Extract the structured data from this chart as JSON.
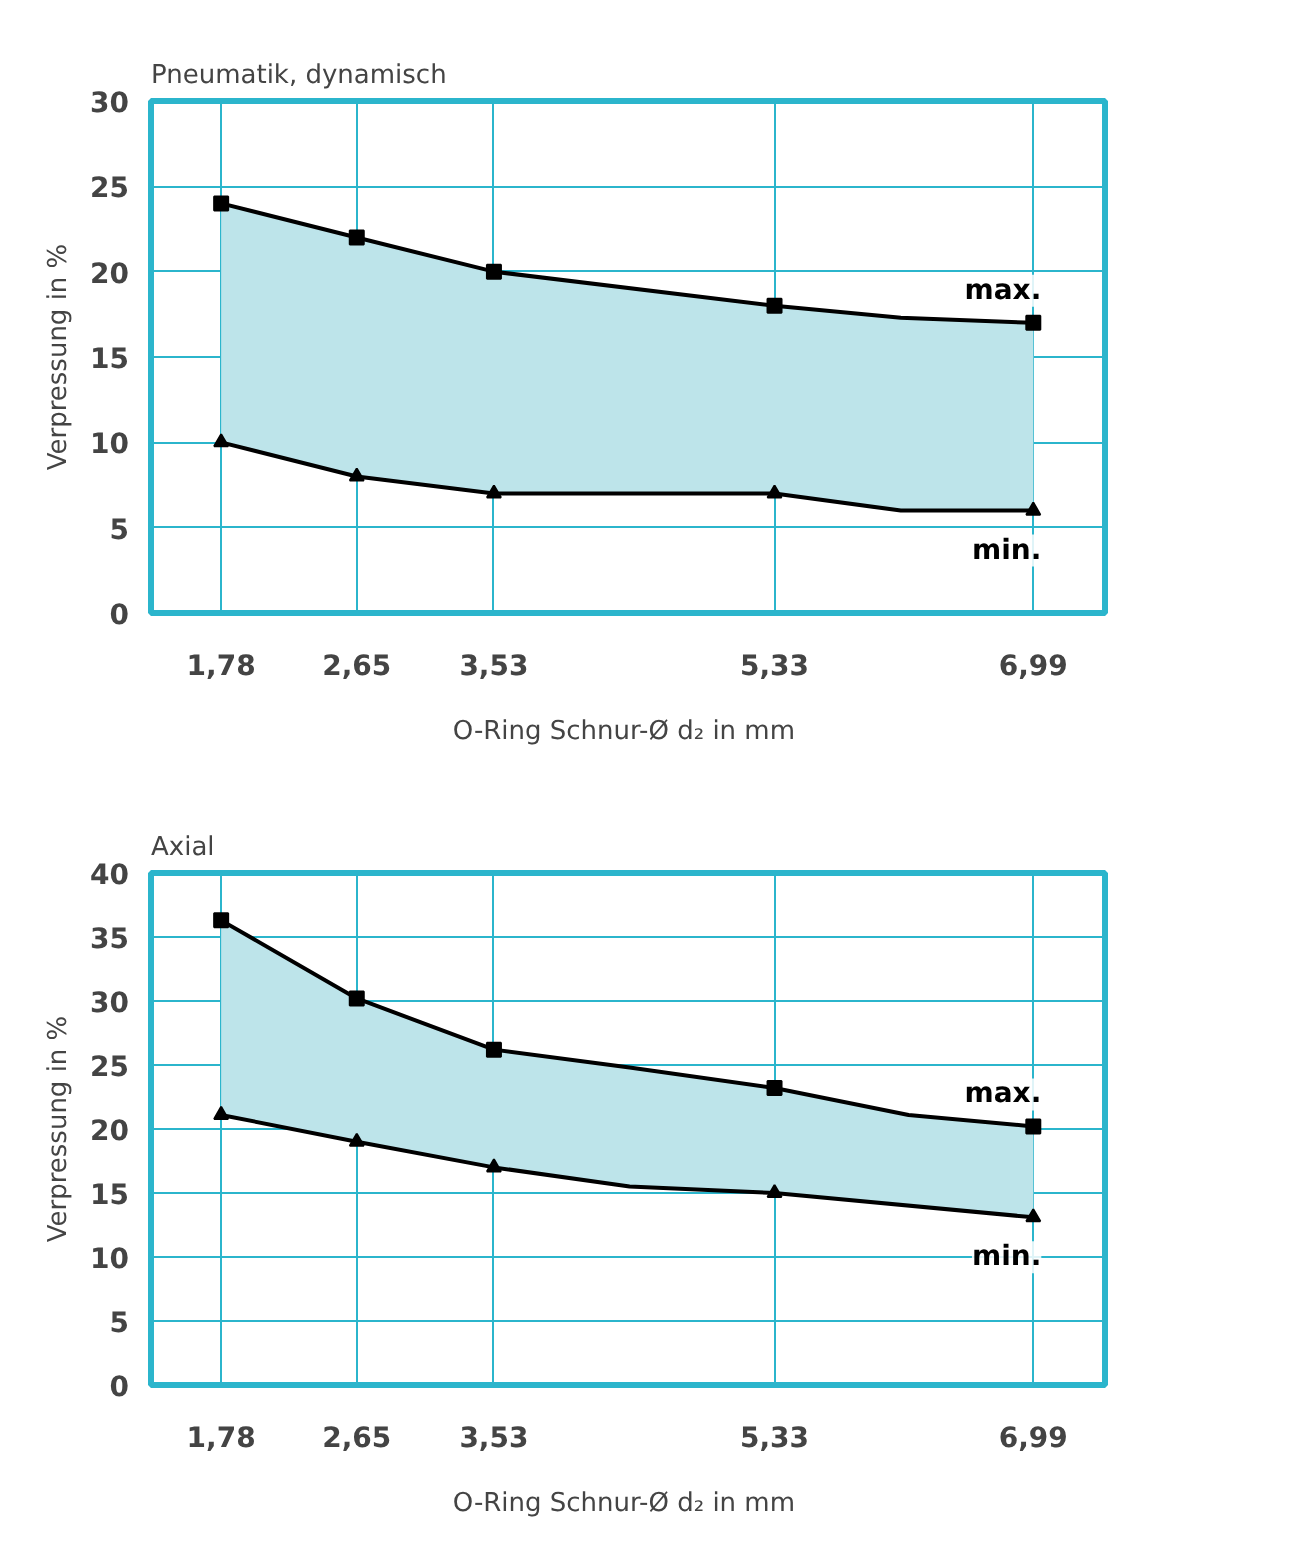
{
  "chart_data": [
    {
      "type": "line",
      "title": "Pneumatik, dynamisch",
      "xlabel": "O-Ring Schnur-Ø  d₂ in mm",
      "ylabel": "Verpressung in %",
      "xlim": [
        1.33,
        7.45
      ],
      "ylim": [
        0,
        30
      ],
      "xticks": [
        {
          "value": 1.78,
          "label": "1,78"
        },
        {
          "value": 2.65,
          "label": "2,65"
        },
        {
          "value": 3.53,
          "label": "3,53"
        },
        {
          "value": 5.33,
          "label": "5,33"
        },
        {
          "value": 6.99,
          "label": "6,99"
        }
      ],
      "yticks": [
        0,
        5,
        10,
        15,
        20,
        25,
        30
      ],
      "grid": true,
      "line_style": "solid",
      "series": [
        {
          "name": "max.",
          "color": "#000000",
          "marker": "square",
          "x": [
            1.78,
            2.65,
            3.53,
            5.33,
            6.14,
            6.99
          ],
          "values": [
            24,
            22,
            20,
            18,
            17.3,
            17
          ],
          "upper": [
            24,
            22,
            20,
            18,
            17.3,
            17
          ],
          "lower": [
            10,
            8,
            7,
            7,
            6,
            6
          ]
        },
        {
          "name": "min.",
          "color": "#000000",
          "marker": "triangle",
          "x": [
            1.78,
            2.65,
            3.53,
            5.33,
            6.14,
            6.99
          ],
          "values": [
            10,
            8,
            7,
            7,
            6,
            6
          ]
        }
      ]
    },
    {
      "type": "line",
      "title": "Axial",
      "xlabel": "O-Ring Schnur-Ø  d₂ in mm",
      "ylabel": "Verpressung in %",
      "xlim": [
        1.33,
        7.45
      ],
      "ylim": [
        0,
        40
      ],
      "xticks": [
        {
          "value": 1.78,
          "label": "1,78"
        },
        {
          "value": 2.65,
          "label": "2,65"
        },
        {
          "value": 3.53,
          "label": "3,53"
        },
        {
          "value": 5.33,
          "label": "5,33"
        },
        {
          "value": 6.99,
          "label": "6,99"
        }
      ],
      "yticks": [
        0,
        5,
        10,
        15,
        20,
        25,
        30,
        35,
        40
      ],
      "grid": true,
      "line_style": "solid",
      "series": [
        {
          "name": "max.",
          "color": "#000000",
          "marker": "square",
          "x": [
            1.78,
            2.65,
            3.53,
            4.4,
            5.33,
            6.19,
            6.99
          ],
          "values": [
            36.3,
            30.2,
            26.2,
            24.8,
            23.2,
            21.1,
            20.2
          ],
          "upper": [
            36.3,
            30.2,
            26.2,
            24.8,
            23.2,
            21.1,
            20.2
          ],
          "lower": [
            21.1,
            19,
            17,
            15.5,
            15,
            14,
            13.1
          ]
        },
        {
          "name": "min.",
          "color": "#000000",
          "marker": "triangle",
          "x": [
            1.78,
            2.65,
            3.53,
            4.4,
            5.33,
            6.99
          ],
          "values": [
            21.1,
            19,
            17,
            15.5,
            15,
            13.1
          ]
        }
      ]
    }
  ]
}
